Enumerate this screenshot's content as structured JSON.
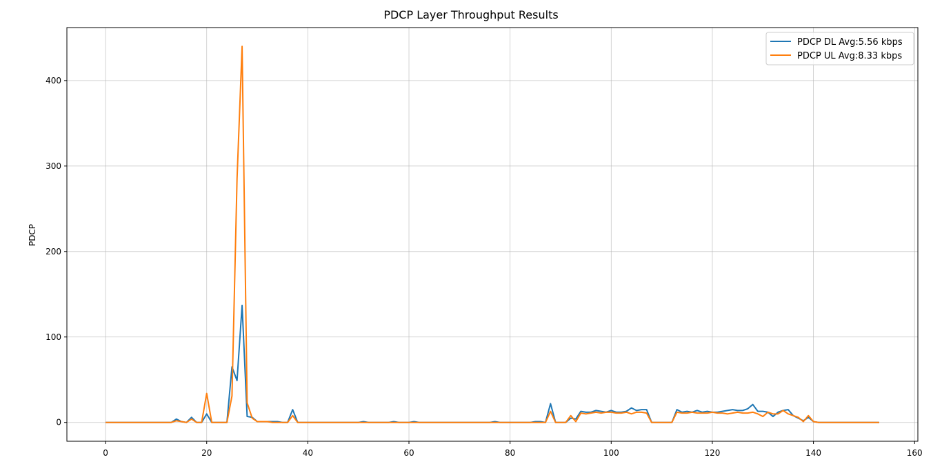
{
  "chart_data": {
    "type": "line",
    "title": "PDCP Layer Throughput Results",
    "xlabel": "",
    "ylabel": "PDCP",
    "xlim": [
      -7.65,
      160.65
    ],
    "ylim": [
      -22.0,
      462.0
    ],
    "xticks": [
      0,
      20,
      40,
      60,
      80,
      100,
      120,
      140,
      160
    ],
    "yticks": [
      0,
      100,
      200,
      300,
      400
    ],
    "grid": true,
    "legend": "top-right",
    "series": [
      {
        "name": "PDCP DL Avg:5.56 kbps",
        "color": "#1f77b4",
        "values": [
          0,
          0,
          0,
          0,
          0,
          0,
          0,
          0,
          0,
          0,
          0,
          0,
          0,
          0,
          4,
          1,
          0,
          6,
          0,
          0,
          10,
          0,
          0,
          0,
          0,
          65,
          49,
          137,
          7,
          6,
          1,
          1,
          1,
          1,
          1,
          0,
          0,
          15,
          0,
          0,
          0,
          0,
          0,
          0,
          0,
          0,
          0,
          0,
          0,
          0,
          0,
          1,
          0,
          0,
          0,
          0,
          0,
          1,
          0,
          0,
          0,
          1,
          0,
          0,
          0,
          0,
          0,
          0,
          0,
          0,
          0,
          0,
          0,
          0,
          0,
          0,
          0,
          1,
          0,
          0,
          0,
          0,
          0,
          0,
          0,
          1,
          1,
          0,
          22,
          0,
          0,
          0,
          5,
          4,
          13,
          12,
          12,
          14,
          13,
          12,
          14,
          12,
          12,
          13,
          17,
          14,
          15,
          15,
          0,
          0,
          0,
          0,
          0,
          15,
          12,
          13,
          12,
          14,
          12,
          13,
          12,
          12,
          13,
          14,
          15,
          14,
          14,
          16,
          21,
          13,
          13,
          12,
          7,
          12,
          14,
          15,
          8,
          5,
          2,
          6,
          1,
          0,
          0,
          0,
          0,
          0,
          0,
          0,
          0,
          0,
          0,
          0,
          0,
          0
        ]
      },
      {
        "name": "PDCP UL Avg:8.33 kbps",
        "color": "#ff7f0e",
        "values": [
          0,
          0,
          0,
          0,
          0,
          0,
          0,
          0,
          0,
          0,
          0,
          0,
          0,
          0,
          2,
          1,
          0,
          4,
          0,
          0,
          34,
          0,
          0,
          0,
          0,
          31,
          285,
          440,
          23,
          5,
          1,
          1,
          1,
          0,
          0,
          0,
          0,
          8,
          0,
          0,
          0,
          0,
          0,
          0,
          0,
          0,
          0,
          0,
          0,
          0,
          0,
          0,
          0,
          0,
          0,
          0,
          0,
          0,
          0,
          0,
          0,
          0,
          0,
          0,
          0,
          0,
          0,
          0,
          0,
          0,
          0,
          0,
          0,
          0,
          0,
          0,
          0,
          0,
          0,
          0,
          0,
          0,
          0,
          0,
          0,
          0,
          0,
          0,
          13,
          0,
          0,
          0,
          8,
          1,
          11,
          10,
          11,
          12,
          11,
          12,
          12,
          11,
          11,
          12,
          10,
          12,
          12,
          11,
          0,
          0,
          0,
          0,
          0,
          12,
          11,
          11,
          12,
          11,
          11,
          11,
          12,
          11,
          11,
          10,
          11,
          12,
          11,
          11,
          12,
          10,
          7,
          12,
          10,
          10,
          14,
          10,
          8,
          6,
          1,
          8,
          1,
          0,
          0,
          0,
          0,
          0,
          0,
          0,
          0,
          0,
          0,
          0,
          0,
          0
        ]
      }
    ]
  }
}
